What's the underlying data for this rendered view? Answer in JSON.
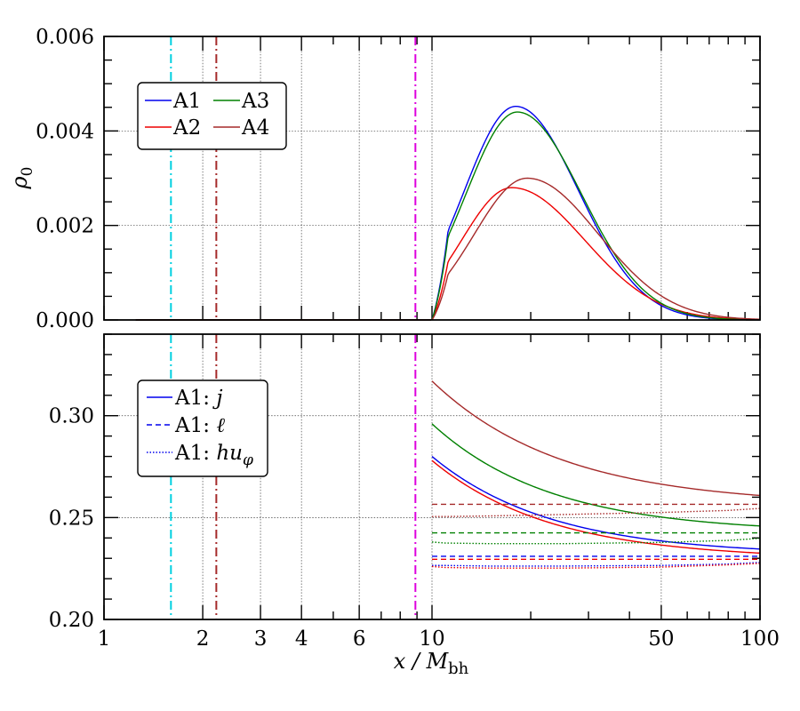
{
  "chart_data": [
    {
      "type": "line",
      "panel": "top",
      "ylabel": "ρ0",
      "xscale": "log",
      "xlim": [
        1,
        100
      ],
      "ylim": [
        0.0,
        0.006
      ],
      "yticks": [
        0.0,
        0.002,
        0.004,
        0.006
      ],
      "ytick_labels": [
        "0.000",
        "0.002",
        "0.004",
        "0.006"
      ],
      "grid": true,
      "legend": {
        "placement": "upper-left",
        "columns": 2,
        "entries": [
          {
            "label": "A1",
            "color": "#0000ee",
            "style": "solid"
          },
          {
            "label": "A3",
            "color": "#008000",
            "style": "solid"
          },
          {
            "label": "A2",
            "color": "#ee0000",
            "style": "solid"
          },
          {
            "label": "A4",
            "color": "#a52a2a",
            "style": "solid"
          }
        ]
      },
      "vlines": [
        {
          "x": 1.6,
          "color": "#00d0e0",
          "style": "dashdot"
        },
        {
          "x": 2.2,
          "color": "#a52a2a",
          "style": "dashdot"
        },
        {
          "x": 8.9,
          "color": "#dd00dd",
          "style": "dashdot"
        }
      ],
      "series": [
        {
          "name": "A1",
          "color": "#0000ee",
          "x": [
            1.25,
            10,
            18,
            100
          ],
          "peak_x": 18,
          "peak": 0.00452,
          "left_width": 0.36,
          "right_width": 0.44,
          "cutoff": 10
        },
        {
          "name": "A2",
          "color": "#ee0000",
          "x": [
            1.25,
            10,
            17.5,
            100
          ],
          "peak_x": 17.5,
          "peak": 0.0028,
          "left_width": 0.35,
          "right_width": 0.51,
          "cutoff": 10
        },
        {
          "name": "A3",
          "color": "#008000",
          "x": [
            1.25,
            10,
            18.2,
            100
          ],
          "peak_x": 18.2,
          "peak": 0.0044,
          "left_width": 0.36,
          "right_width": 0.45,
          "cutoff": 10
        },
        {
          "name": "A4",
          "color": "#a52a2a",
          "x": [
            1.25,
            10,
            19.5,
            100
          ],
          "peak_x": 19.5,
          "peak": 0.003,
          "left_width": 0.37,
          "right_width": 0.5,
          "cutoff": 10
        }
      ]
    },
    {
      "type": "line",
      "panel": "bottom",
      "xlabel": "x / M",
      "xlabel_sub": "bh",
      "xscale": "log",
      "xlim": [
        1,
        100
      ],
      "ylim": [
        0.2,
        0.34
      ],
      "yticks": [
        0.2,
        0.25,
        0.3
      ],
      "ytick_labels": [
        "0.20",
        "0.25",
        "0.30"
      ],
      "xticks": [
        1,
        2,
        3,
        4,
        6,
        10,
        50,
        100
      ],
      "xtick_labels": [
        "1",
        "2",
        "3",
        "4",
        "6",
        "10",
        "50",
        "100"
      ],
      "grid": true,
      "legend": {
        "placement": "upper-left",
        "columns": 1,
        "entries": [
          {
            "label": "A1: ",
            "symbol": "j",
            "color": "#0000ee",
            "style": "solid"
          },
          {
            "label": "A1: ",
            "symbol": "ℓ",
            "color": "#0000ee",
            "style": "dashed"
          },
          {
            "label": "A1: ",
            "symbol": "hu",
            "symbol_sub": "φ",
            "color": "#0000ee",
            "style": "dotted"
          }
        ]
      },
      "vlines": [
        {
          "x": 1.6,
          "color": "#00d0e0",
          "style": "dashdot"
        },
        {
          "x": 2.2,
          "color": "#a52a2a",
          "style": "dashdot"
        },
        {
          "x": 8.9,
          "color": "#dd00dd",
          "style": "dashdot"
        }
      ],
      "series": [
        {
          "name": "A1 j",
          "color": "#0000ee",
          "style": "solid",
          "start": 0.28,
          "end": 0.2315,
          "decay": 1.2
        },
        {
          "name": "A2 j",
          "color": "#ee0000",
          "style": "solid",
          "start": 0.278,
          "end": 0.2295,
          "decay": 1.2
        },
        {
          "name": "A3 j",
          "color": "#008000",
          "style": "solid",
          "start": 0.296,
          "end": 0.2425,
          "decay": 1.2
        },
        {
          "name": "A4 j",
          "color": "#a52a2a",
          "style": "solid",
          "start": 0.317,
          "end": 0.256,
          "decay": 1.1
        },
        {
          "name": "A1 ℓ",
          "color": "#0000ee",
          "style": "dashed",
          "x": [
            10,
            100
          ],
          "y": [
            0.231,
            0.231
          ]
        },
        {
          "name": "A2 ℓ",
          "color": "#ee0000",
          "style": "dashed",
          "x": [
            10,
            100
          ],
          "y": [
            0.2295,
            0.2295
          ]
        },
        {
          "name": "A3 ℓ",
          "color": "#008000",
          "style": "dashed",
          "x": [
            10,
            100
          ],
          "y": [
            0.2425,
            0.2425
          ]
        },
        {
          "name": "A4 ℓ",
          "color": "#a52a2a",
          "style": "dashed",
          "x": [
            10,
            100
          ],
          "y": [
            0.2565,
            0.2565
          ]
        },
        {
          "name": "A1 huφ",
          "color": "#0000ee",
          "style": "dotted",
          "x": [
            10,
            11,
            15,
            25,
            50,
            80,
            100
          ],
          "y": [
            0.2265,
            0.2265,
            0.2262,
            0.2262,
            0.2265,
            0.2272,
            0.228
          ]
        },
        {
          "name": "A2 huφ",
          "color": "#ee0000",
          "style": "dotted",
          "x": [
            10,
            11,
            15,
            25,
            50,
            80,
            100
          ],
          "y": [
            0.226,
            0.2255,
            0.2252,
            0.2252,
            0.2257,
            0.2268,
            0.2275
          ]
        },
        {
          "name": "A3 huφ",
          "color": "#008000",
          "style": "dotted",
          "x": [
            10,
            11,
            15,
            25,
            50,
            80,
            100
          ],
          "y": [
            0.238,
            0.2375,
            0.2372,
            0.2372,
            0.2378,
            0.2388,
            0.2398
          ]
        },
        {
          "name": "A4 huφ",
          "color": "#a52a2a",
          "style": "dotted",
          "x": [
            10,
            11,
            15,
            25,
            50,
            80,
            100
          ],
          "y": [
            0.2505,
            0.2505,
            0.2508,
            0.2515,
            0.2525,
            0.2535,
            0.2545
          ]
        }
      ]
    }
  ]
}
